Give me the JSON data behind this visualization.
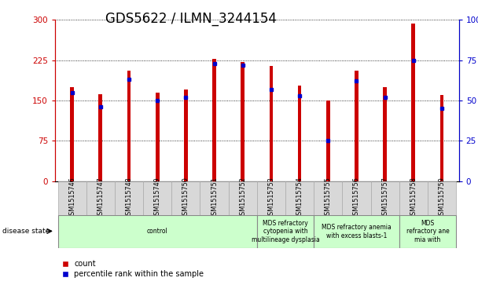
{
  "title": "GDS5622 / ILMN_3244154",
  "samples": [
    "GSM1515746",
    "GSM1515747",
    "GSM1515748",
    "GSM1515749",
    "GSM1515750",
    "GSM1515751",
    "GSM1515752",
    "GSM1515753",
    "GSM1515754",
    "GSM1515755",
    "GSM1515756",
    "GSM1515757",
    "GSM1515758",
    "GSM1515759"
  ],
  "counts": [
    175,
    162,
    205,
    165,
    170,
    228,
    222,
    215,
    178,
    150,
    205,
    175,
    293,
    160
  ],
  "percentiles": [
    55,
    46,
    63,
    50,
    52,
    73,
    72,
    57,
    53,
    25,
    62,
    52,
    75,
    45
  ],
  "disease_groups": [
    {
      "label": "control",
      "start": 0,
      "end": 7,
      "color": "#ccffcc"
    },
    {
      "label": "MDS refractory\ncytopenia with\nmultilineage dysplasia",
      "start": 7,
      "end": 9,
      "color": "#ccffcc"
    },
    {
      "label": "MDS refractory anemia\nwith excess blasts-1",
      "start": 9,
      "end": 12,
      "color": "#ccffcc"
    },
    {
      "label": "MDS\nrefractory ane\nmia with",
      "start": 12,
      "end": 14,
      "color": "#ccffcc"
    }
  ],
  "bar_color": "#cc0000",
  "percentile_color": "#0000cc",
  "left_ylim": [
    0,
    300
  ],
  "right_ylim": [
    0,
    100
  ],
  "left_yticks": [
    0,
    75,
    150,
    225,
    300
  ],
  "right_yticks": [
    0,
    25,
    50,
    75,
    100
  ],
  "right_yticklabels": [
    "0",
    "25",
    "50",
    "75",
    "100%"
  ],
  "bar_width": 0.13,
  "bg_color": "#ffffff",
  "plot_bg": "#ffffff",
  "title_fontsize": 12,
  "tick_fontsize": 7.5,
  "sample_fontsize": 5.8,
  "disease_fontsize": 5.5,
  "legend_fontsize": 7
}
